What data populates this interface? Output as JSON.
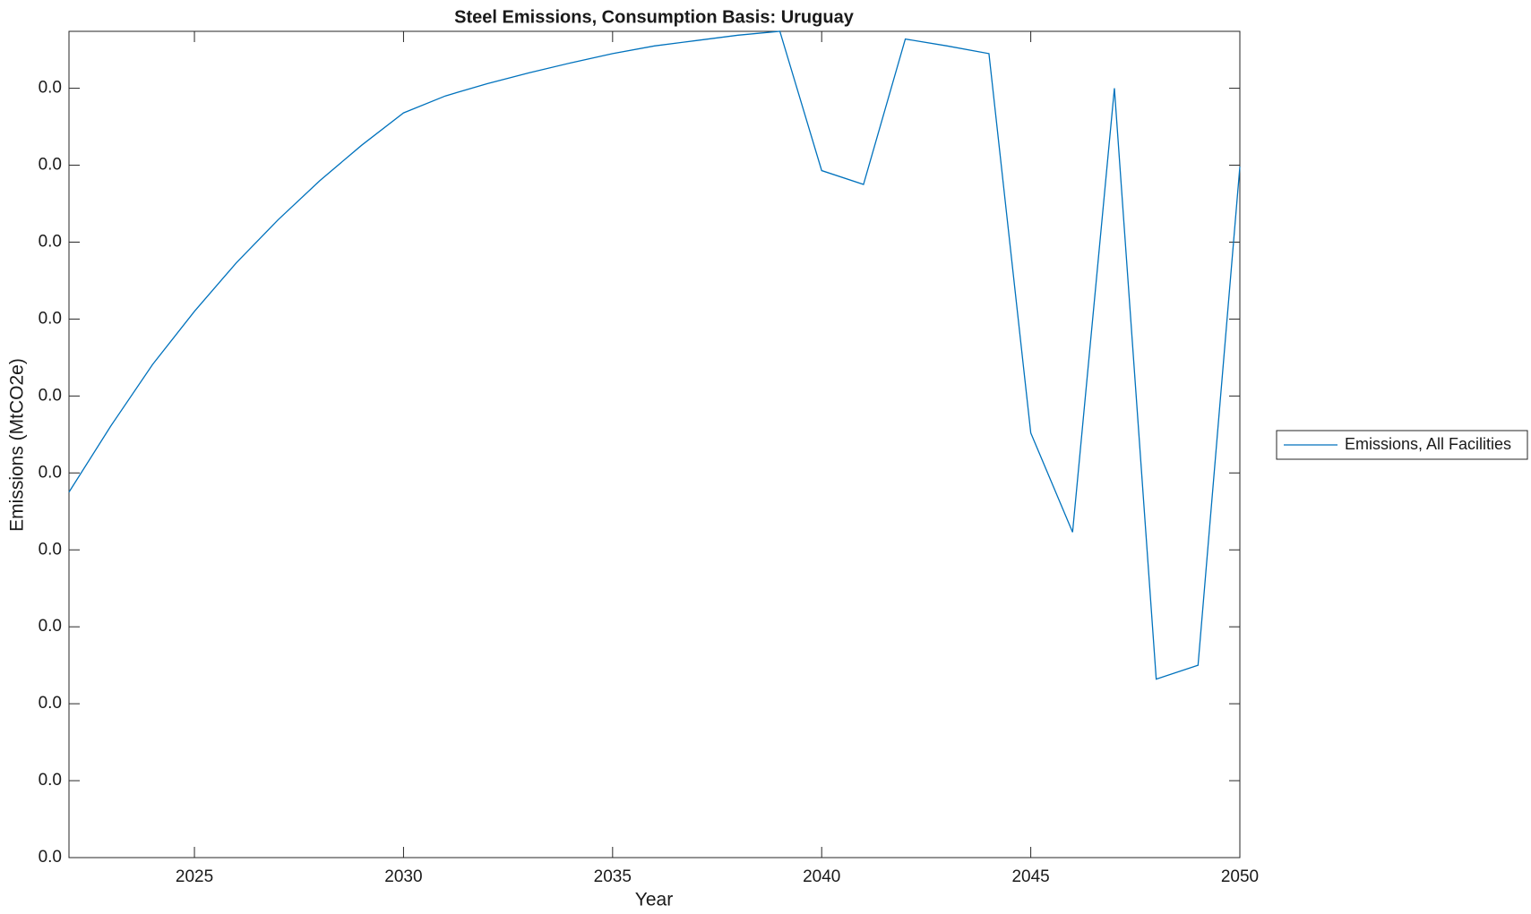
{
  "chart_data": {
    "type": "line",
    "title": "Steel Emissions, Consumption Basis: Uruguay",
    "x_label": "Year",
    "y_label": "Emissions (MtCO2e)",
    "x": [
      2022,
      2023,
      2024,
      2025,
      2026,
      2027,
      2028,
      2029,
      2030,
      2031,
      2032,
      2033,
      2034,
      2035,
      2036,
      2037,
      2038,
      2039,
      2040,
      2041,
      2042,
      2043,
      2044,
      2045,
      2046,
      2047,
      2048,
      2049,
      2050
    ],
    "series": [
      {
        "name": "Emissions, All Facilities",
        "color": "#0072bd",
        "values": [
          0.00475,
          0.00561,
          0.00641,
          0.0071,
          0.00773,
          0.00829,
          0.0088,
          0.00926,
          0.00968,
          0.0099,
          0.01006,
          0.0102,
          0.01033,
          0.01045,
          0.01055,
          0.01062,
          0.01069,
          0.01074,
          0.00893,
          0.00875,
          0.01064,
          0.01055,
          0.01045,
          0.00552,
          0.00423,
          0.01,
          0.00232,
          0.0025,
          0.00898
        ]
      }
    ],
    "xlim": [
      2022,
      2050
    ],
    "xticks": [
      2025,
      2030,
      2035,
      2040,
      2045,
      2050
    ],
    "ylim": [
      0,
      0.01074
    ],
    "yticks": [
      {
        "value": 0,
        "label": "0.0"
      },
      {
        "value": 0.001,
        "label": "0.0"
      },
      {
        "value": 0.002,
        "label": "0.0"
      },
      {
        "value": 0.003,
        "label": "0.0"
      },
      {
        "value": 0.004,
        "label": "0.0"
      },
      {
        "value": 0.005,
        "label": "0.0"
      },
      {
        "value": 0.006,
        "label": "0.0"
      },
      {
        "value": 0.007,
        "label": "0.0"
      },
      {
        "value": 0.008,
        "label": "0.0"
      },
      {
        "value": 0.009,
        "label": "0.0"
      },
      {
        "value": 0.01,
        "label": "0.0"
      }
    ],
    "grid": false,
    "legend": "outside-right"
  }
}
